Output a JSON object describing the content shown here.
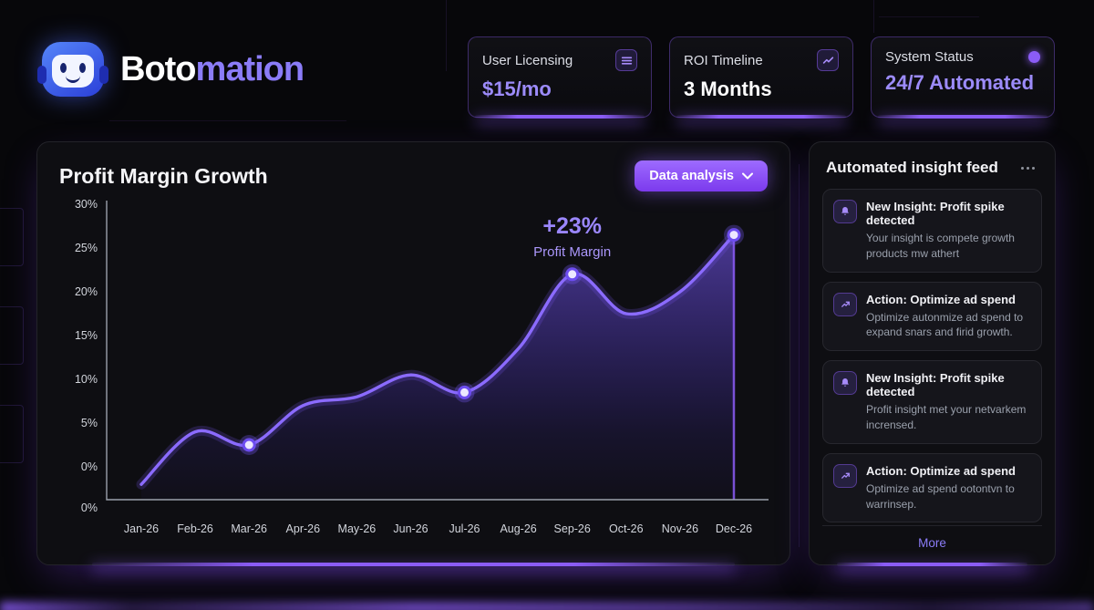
{
  "brand": {
    "name_primary": "Boto",
    "name_secondary": "mation"
  },
  "stats": [
    {
      "label": "User Licensing",
      "value": "$15/mo",
      "icon": "menu-lines-icon",
      "value_color": "#9c8bfa"
    },
    {
      "label": "ROI Timeline",
      "value": "3 Months",
      "icon": "trend-up-icon",
      "value_color": "#ffffff"
    },
    {
      "label": "System Status",
      "value": "24/7 Automated",
      "icon": "status-dot-icon",
      "value_color": "#9c8bfa"
    }
  ],
  "chart_panel": {
    "title": "Profit Margin Growth",
    "button_label": "Data analysis"
  },
  "chart_data": {
    "type": "area",
    "title": "Profit Margin Growth",
    "x": [
      "Jan-26",
      "Feb-26",
      "Mar-26",
      "Apr-26",
      "May-26",
      "Jun-26",
      "Jul-26",
      "Aug-26",
      "Sep-26",
      "Oct-26",
      "Nov-26",
      "Dec-26"
    ],
    "series": [
      {
        "name": "Profit Margin",
        "values": [
          -2,
          4,
          2.5,
          7,
          8,
          10.5,
          8.5,
          13.5,
          22,
          17.5,
          20,
          26.5
        ]
      }
    ],
    "marked_points": [
      "Mar-26",
      "Jul-26",
      "Sep-26",
      "Dec-26"
    ],
    "y_tick_labels": [
      "30%",
      "25%",
      "20%",
      "15%",
      "10%",
      "5%",
      "0%",
      "0%"
    ],
    "ylim": [
      -3.5,
      31
    ],
    "grid": false,
    "annotation": {
      "label": "+23%",
      "sublabel": "Profit Margin",
      "anchor_x": "Sep-26"
    },
    "line_color": "#8b6bff",
    "fill_color": "#7c5cfc"
  },
  "insight_feed": {
    "title": "Automated insight feed",
    "more_label": "More",
    "items": [
      {
        "icon": "bell-icon",
        "title": "New Insight: Profit spike detected",
        "desc": "Your insight is compete growth products mw athert"
      },
      {
        "icon": "trend-arrow-icon",
        "title": "Action: Optimize ad spend",
        "desc": "Optimize autonmize ad spend to expand snars and firid growth."
      },
      {
        "icon": "bell-icon",
        "title": "New Insight: Profit spike detected",
        "desc": "Profit insight met your netvarkem incrensed."
      },
      {
        "icon": "trend-arrow-icon",
        "title": "Action: Optimize ad spend",
        "desc": "Optimize ad spend ootontvn to warrinsep."
      }
    ]
  }
}
